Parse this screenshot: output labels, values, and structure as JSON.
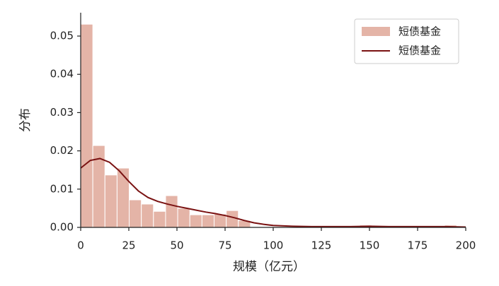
{
  "chart_data": {
    "type": "histogram",
    "xlabel": "规模（亿元）",
    "ylabel": "分布",
    "bins": [
      0,
      6.3,
      12.6,
      18.9,
      25.2,
      31.5,
      37.8,
      44.1,
      50.4,
      56.7,
      63,
      69.3,
      75.6,
      81.9,
      88.2,
      94.5,
      100.8,
      107.1,
      113.4,
      119.7,
      126,
      132.3,
      138.6,
      144.9,
      151.2,
      157.5,
      163.8,
      170.1,
      176.4,
      182.7,
      189,
      195.3
    ],
    "series": [
      {
        "name": "短债基金",
        "color": "#e4b4a7",
        "values": [
          0.0531,
          0.0214,
          0.0137,
          0.0155,
          0.0072,
          0.0061,
          0.0042,
          0.0083,
          0.005,
          0.0033,
          0.0033,
          0.0035,
          0.0044,
          0.0018,
          0,
          0,
          0,
          0,
          0,
          0,
          0,
          0,
          0,
          0.0006,
          0,
          0,
          0,
          0,
          0,
          0,
          0.0006
        ]
      }
    ],
    "line": {
      "type": "line",
      "name": "短债基金",
      "color": "#7a1212",
      "x": [
        0,
        5,
        10,
        15,
        20,
        25,
        30,
        35,
        40,
        45,
        50,
        55,
        60,
        65,
        70,
        75,
        80,
        85,
        90,
        95,
        100,
        110,
        120,
        130,
        140,
        150,
        160,
        170,
        180,
        190,
        200
      ],
      "values": [
        0.0155,
        0.0175,
        0.018,
        0.017,
        0.0148,
        0.012,
        0.0095,
        0.0078,
        0.0068,
        0.0061,
        0.0055,
        0.005,
        0.0045,
        0.004,
        0.0036,
        0.0031,
        0.0025,
        0.0018,
        0.0012,
        0.0008,
        0.0005,
        0.0003,
        0.0002,
        0.0002,
        0.0002,
        0.0003,
        0.0002,
        0.0002,
        0.0002,
        0.0002,
        0.0001
      ]
    },
    "xlim": [
      0,
      200
    ],
    "ylim": [
      0,
      0.0561
    ],
    "xticks": [
      0,
      25,
      50,
      75,
      100,
      125,
      150,
      175,
      200
    ],
    "yticks": [
      {
        "value": 0,
        "label": "0.00"
      },
      0.01,
      0.02,
      0.03,
      0.04,
      0.05
    ],
    "legend": "upper right"
  }
}
